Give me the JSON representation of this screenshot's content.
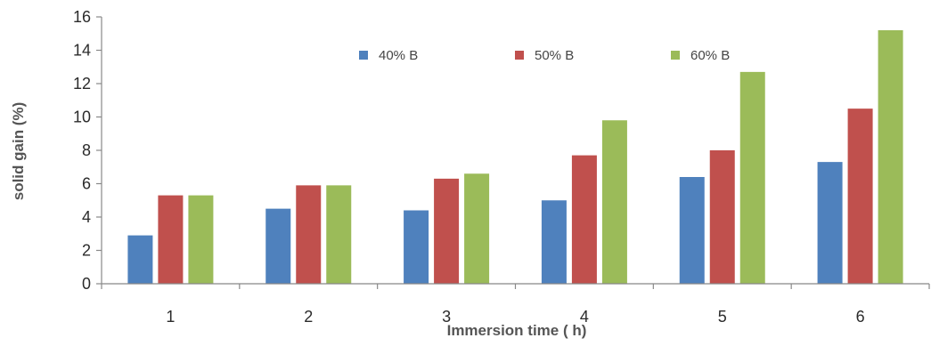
{
  "chart_data": {
    "type": "bar",
    "categories": [
      "1",
      "2",
      "3",
      "4",
      "5",
      "6"
    ],
    "series": [
      {
        "name": "40% B",
        "color": "#4F81BD",
        "values": [
          2.9,
          4.5,
          4.4,
          5.0,
          6.4,
          7.3
        ]
      },
      {
        "name": "50% B",
        "color": "#C0504D",
        "values": [
          5.3,
          5.9,
          6.3,
          7.7,
          8.0,
          10.5
        ]
      },
      {
        "name": "60% B",
        "color": "#9BBB59",
        "values": [
          5.3,
          5.9,
          6.6,
          9.8,
          12.7,
          15.2
        ]
      }
    ],
    "title": "",
    "xlabel": "Immersion time ( h)",
    "ylabel": "solid gain (%)",
    "ylim": [
      0,
      16
    ],
    "yticks": [
      "0",
      "2",
      "4",
      "6",
      "8",
      "10",
      "12",
      "14",
      "16"
    ],
    "grid": false,
    "legend_position": "top-center"
  }
}
